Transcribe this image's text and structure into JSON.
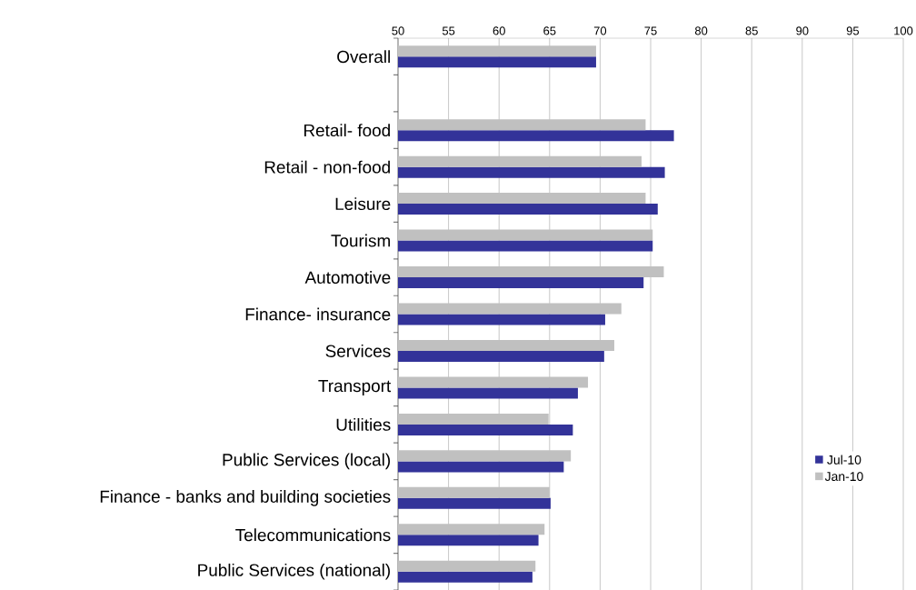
{
  "chart_data": {
    "type": "bar",
    "orientation": "horizontal",
    "categories": [
      "Overall",
      null,
      "Retail- food",
      "Retail - non-food",
      "Leisure",
      "Tourism",
      "Automotive",
      "Finance- insurance",
      "Services",
      "Transport",
      "Utilities",
      "Public Services (local)",
      "Finance - banks and building societies",
      "Telecommunications",
      "Public Services (national)"
    ],
    "series": [
      {
        "name": "Jul-10",
        "color": "#333399",
        "values": [
          69.6,
          null,
          77.3,
          76.4,
          75.7,
          75.2,
          74.3,
          70.5,
          70.4,
          67.8,
          67.3,
          66.4,
          65.1,
          63.9,
          63.3
        ]
      },
      {
        "name": "Jan-10",
        "color": "#c0c0c0",
        "values": [
          69.6,
          null,
          74.5,
          74.1,
          74.5,
          75.2,
          76.3,
          72.1,
          71.4,
          68.8,
          64.9,
          67.1,
          65.0,
          64.5,
          63.6
        ]
      }
    ],
    "xlim": [
      50,
      100
    ],
    "xticks": [
      50,
      55,
      60,
      65,
      70,
      75,
      80,
      85,
      90,
      95,
      100
    ],
    "grid": "x",
    "legend": "right"
  }
}
